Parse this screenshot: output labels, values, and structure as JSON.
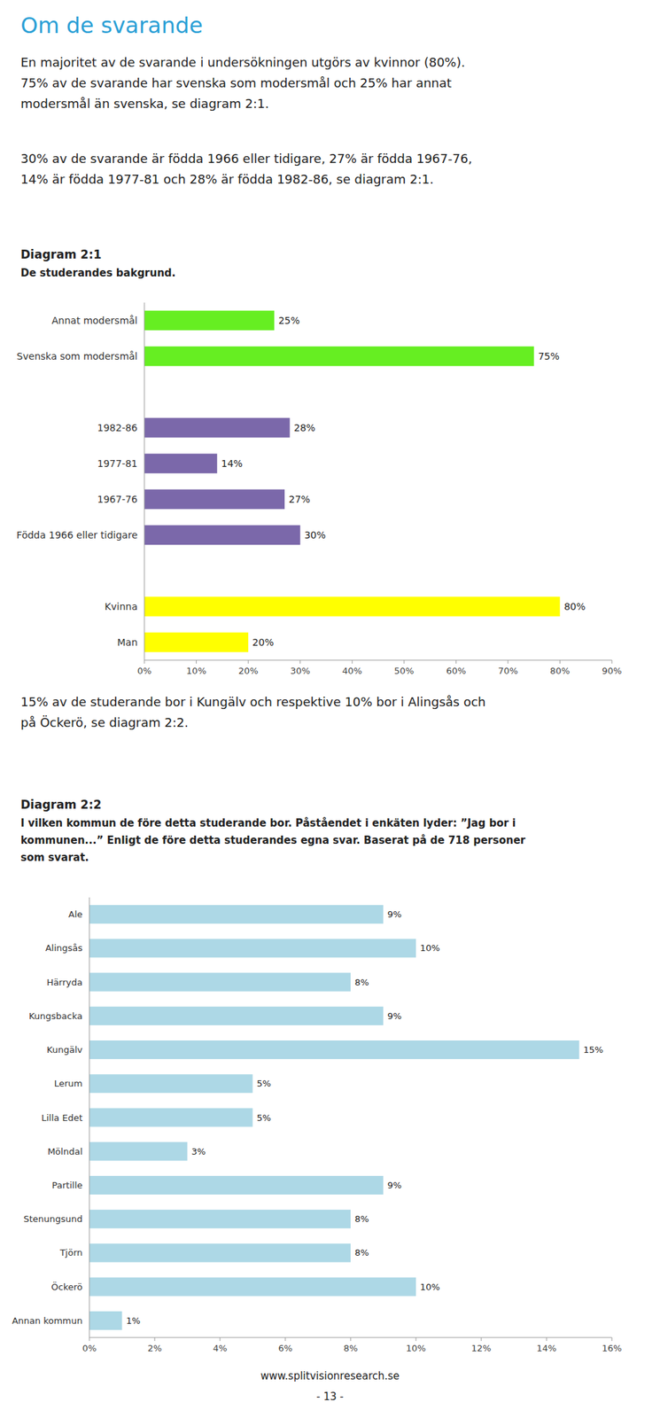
{
  "page": {
    "title": "Om de svarande",
    "paragraphs": [
      [
        "En majoritet av de svarande i undersökningen utgörs av kvinnor (80%).",
        "75% av de svarande har svenska som modersmål och 25% har annat",
        "modersmål än svenska, se diagram 2:1."
      ],
      [
        "30% av de svarande är födda 1966 eller tidigare, 27% är födda 1967-76,",
        "14% är födda 1977-81 och 28% är födda 1982-86, se diagram 2:1."
      ],
      [
        "15% av de studerande bor i Kungälv och respektive 10% bor i Alingsås och",
        "på Öckerö, se diagram 2:2."
      ]
    ],
    "footer": [
      "www.splitvisionresearch.se",
      "- 13 -"
    ]
  },
  "chart_data": [
    {
      "type": "bar",
      "orientation": "horizontal",
      "title": "Diagram 2:1",
      "subtitle": [
        "De studerandes bakgrund."
      ],
      "categories": [
        "Annat modersmål",
        "Svenska som modersmål",
        null,
        "1982-86",
        "1977-81",
        "1967-76",
        "Födda 1966 eller tidigare",
        null,
        "Kvinna",
        "Man"
      ],
      "values": [
        25,
        75,
        null,
        28,
        14,
        27,
        30,
        null,
        80,
        20
      ],
      "value_labels": [
        "25%",
        "75%",
        null,
        "28%",
        "14%",
        "27%",
        "30%",
        null,
        "80%",
        "20%"
      ],
      "colors": [
        "#66EE22",
        "#66EE22",
        null,
        "#7B68AA",
        "#7B68AA",
        "#7B68AA",
        "#7B68AA",
        null,
        "#FFFF00",
        "#FFFF00"
      ],
      "xlim": [
        0,
        90
      ],
      "xticks": [
        {
          "value": 0,
          "label": "0%"
        },
        {
          "value": 10,
          "label": "10%"
        },
        {
          "value": 20,
          "label": "20%"
        },
        {
          "value": 30,
          "label": "30%"
        },
        {
          "value": 40,
          "label": "40%"
        },
        {
          "value": 50,
          "label": "50%"
        },
        {
          "value": 60,
          "label": "60%"
        },
        {
          "value": 70,
          "label": "70%"
        },
        {
          "value": 80,
          "label": "80%"
        },
        {
          "value": 90,
          "label": "90%"
        }
      ],
      "data_labels": true,
      "grid": false
    },
    {
      "type": "bar",
      "orientation": "horizontal",
      "title": "Diagram 2:2",
      "subtitle": [
        "I vilken kommun de före detta studerande bor. Påståendet i enkäten lyder: ”Jag bor i",
        "kommunen...” Enligt de före detta studerandes egna svar. Baserat på de 718 personer",
        "som svarat."
      ],
      "categories": [
        "Ale",
        "Alingsås",
        "Härryda",
        "Kungsbacka",
        "Kungälv",
        "Lerum",
        "Lilla Edet",
        "Mölndal",
        "Partille",
        "Stenungsund",
        "Tjörn",
        "Öckerö",
        "Annan kommun"
      ],
      "values": [
        9,
        10,
        8,
        9,
        15,
        5,
        5,
        3,
        9,
        8,
        8,
        10,
        1
      ],
      "value_labels": [
        "9%",
        "10%",
        "8%",
        "9%",
        "15%",
        "5%",
        "5%",
        "3%",
        "9%",
        "8%",
        "8%",
        "10%",
        "1%"
      ],
      "color": "#ADD8E6",
      "xlim": [
        0,
        16
      ],
      "xticks": [
        {
          "value": 0,
          "label": "0%"
        },
        {
          "value": 2,
          "label": "2%"
        },
        {
          "value": 4,
          "label": "4%"
        },
        {
          "value": 6,
          "label": "6%"
        },
        {
          "value": 8,
          "label": "8%"
        },
        {
          "value": 10,
          "label": "10%"
        },
        {
          "value": 12,
          "label": "12%"
        },
        {
          "value": 14,
          "label": "14%"
        },
        {
          "value": 16,
          "label": "16%"
        }
      ],
      "data_labels": true,
      "grid": false
    }
  ]
}
